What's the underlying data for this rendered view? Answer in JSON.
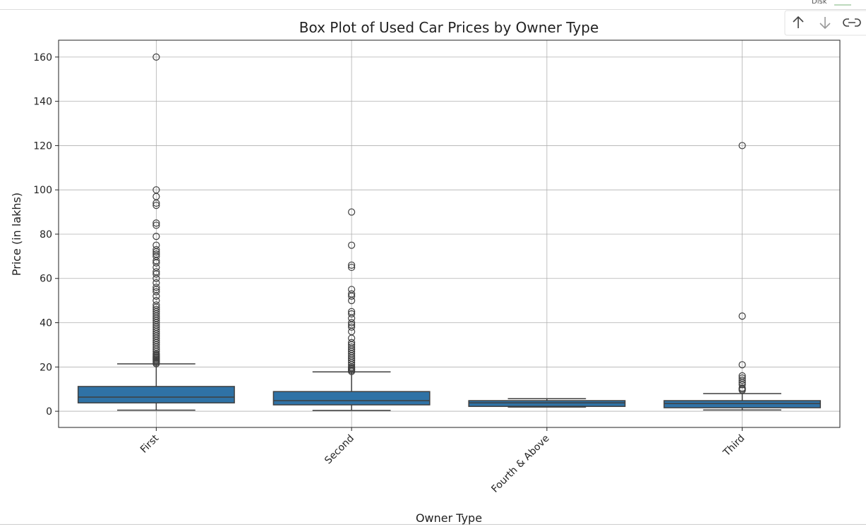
{
  "ui": {
    "disk_label": "Disk"
  },
  "chart_data": {
    "type": "box",
    "title": "Box Plot of Used Car Prices by Owner Type",
    "x_label": "Owner Type",
    "y_label": "Price (in lakhs)",
    "categories": [
      "First",
      "Second",
      "Fourth & Above",
      "Third"
    ],
    "color": "#2f72a6",
    "grid": true,
    "ylim": [
      -7.3,
      167.6
    ],
    "yticks": [
      0,
      20,
      40,
      60,
      80,
      100,
      120,
      140,
      160
    ],
    "boxes": [
      {
        "low": 0.5,
        "q1": 3.8,
        "median": 6.4,
        "q3": 11.2,
        "high": 21.4,
        "outliers": [
          21.5,
          22,
          22.5,
          23,
          23.5,
          24,
          24.5,
          25,
          25.5,
          26,
          27,
          28,
          29,
          30,
          31,
          32,
          33,
          34,
          35,
          36,
          37,
          38,
          39,
          40,
          41,
          42,
          43,
          44,
          45,
          46,
          47,
          48,
          50,
          52,
          54,
          55,
          56,
          58,
          60,
          62,
          63,
          65,
          67,
          68,
          70,
          71,
          72,
          73,
          75,
          79,
          84,
          85,
          93,
          94,
          97,
          100,
          160
        ]
      },
      {
        "low": 0.4,
        "q1": 2.9,
        "median": 4.8,
        "q3": 8.9,
        "high": 17.8,
        "outliers": [
          18,
          18.5,
          19,
          19.5,
          20,
          21,
          22,
          23,
          24,
          25,
          26,
          27,
          28,
          29,
          30,
          31,
          33,
          36,
          38,
          39,
          40,
          42,
          44,
          45,
          50,
          52,
          53,
          55,
          65,
          66,
          75,
          90
        ]
      },
      {
        "low": 1.9,
        "q1": 2.2,
        "median": 3.8,
        "q3": 4.8,
        "high": 5.7,
        "outliers": []
      },
      {
        "low": 0.6,
        "q1": 1.6,
        "median": 3.5,
        "q3": 4.8,
        "high": 8.0,
        "outliers": [
          9.5,
          10,
          10.5,
          12,
          13,
          14,
          15,
          16,
          21,
          43,
          120
        ]
      }
    ]
  }
}
